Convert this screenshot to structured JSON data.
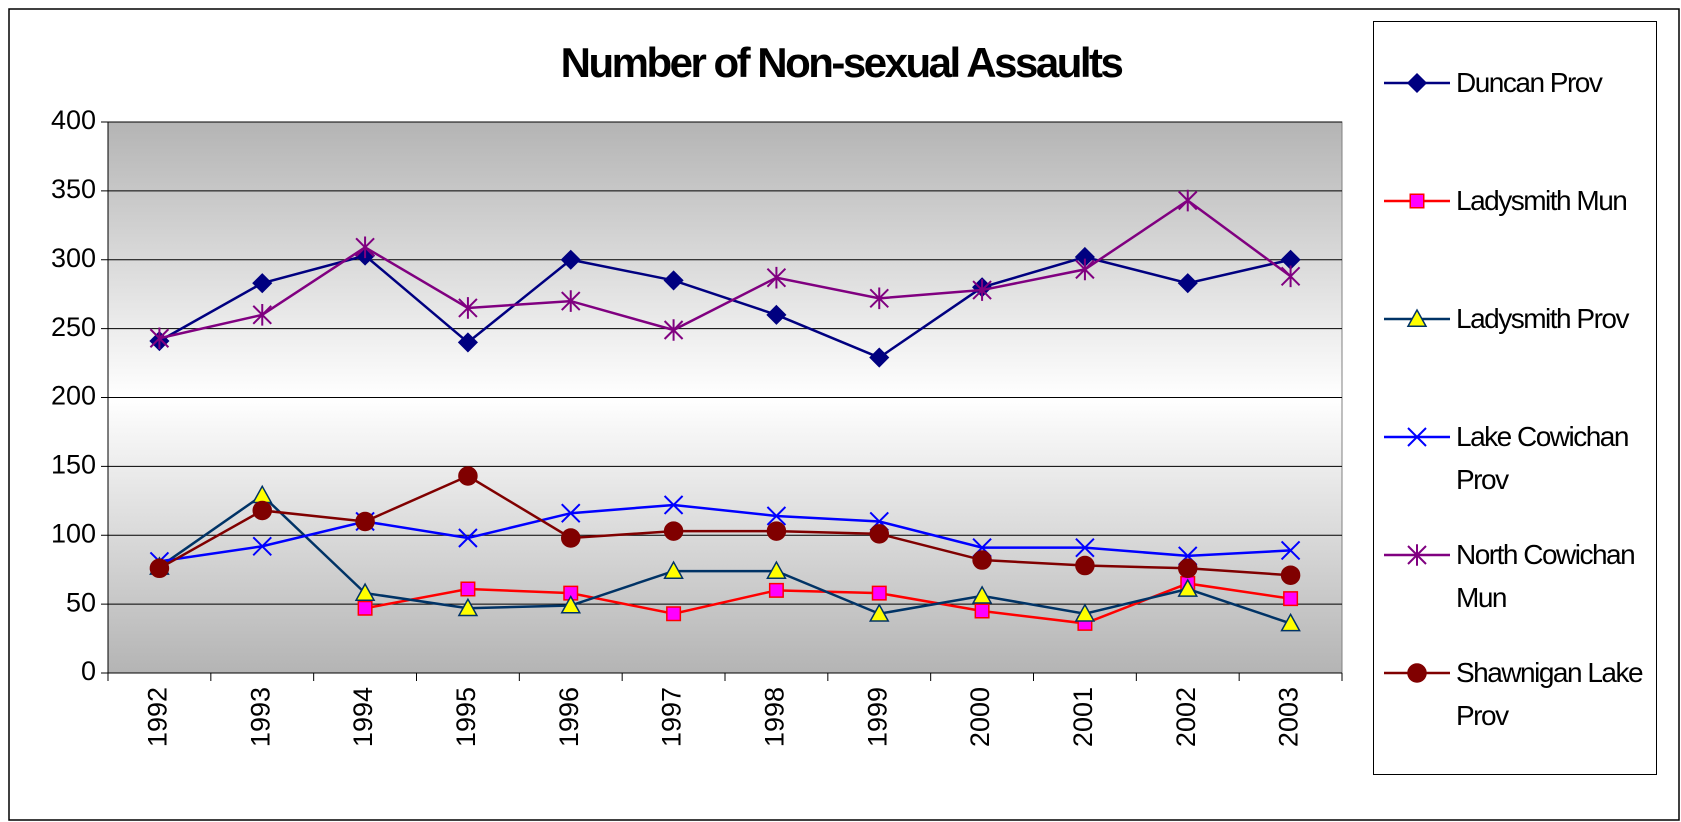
{
  "chart_data": {
    "type": "line",
    "title": "Number of Non-sexual Assaults",
    "categories": [
      "1992",
      "1993",
      "1994",
      "1995",
      "1996",
      "1997",
      "1998",
      "1999",
      "2000",
      "2001",
      "2002",
      "2003"
    ],
    "ylim": [
      0,
      400
    ],
    "yticks": [
      0,
      50,
      100,
      150,
      200,
      250,
      300,
      350,
      400
    ],
    "grid": true,
    "legend": "right",
    "series": [
      {
        "name": "Duncan Prov",
        "color": "#000080",
        "marker": "diamond",
        "marker_fill": "#000080",
        "values": [
          241,
          283,
          303,
          240,
          300,
          285,
          260,
          229,
          280,
          302,
          283,
          300
        ]
      },
      {
        "name": "Ladysmith Mun",
        "color": "#ff0000",
        "marker": "square",
        "marker_fill": "#ff00ff",
        "values": [
          null,
          null,
          47,
          61,
          58,
          43,
          60,
          58,
          45,
          36,
          65,
          54
        ]
      },
      {
        "name": "Ladysmith Prov",
        "color": "#003366",
        "marker": "triangle",
        "marker_fill": "#ffff00",
        "values": [
          77,
          129,
          58,
          47,
          49,
          74,
          74,
          43,
          56,
          43,
          61,
          36
        ]
      },
      {
        "name": "Lake Cowichan Prov",
        "color": "#0000ff",
        "marker": "x",
        "marker_fill": "none",
        "values": [
          81,
          92,
          110,
          98,
          116,
          122,
          114,
          110,
          91,
          91,
          85,
          89
        ]
      },
      {
        "name": "North Cowichan Mun",
        "color": "#800080",
        "marker": "star",
        "marker_fill": "none",
        "values": [
          243,
          260,
          309,
          265,
          270,
          249,
          287,
          272,
          278,
          293,
          343,
          288
        ]
      },
      {
        "name": "Shawnigan Lake Prov",
        "color": "#800000",
        "marker": "circle",
        "marker_fill": "#800000",
        "values": [
          76,
          118,
          110,
          143,
          98,
          103,
          103,
          101,
          82,
          78,
          76,
          71
        ]
      }
    ]
  }
}
